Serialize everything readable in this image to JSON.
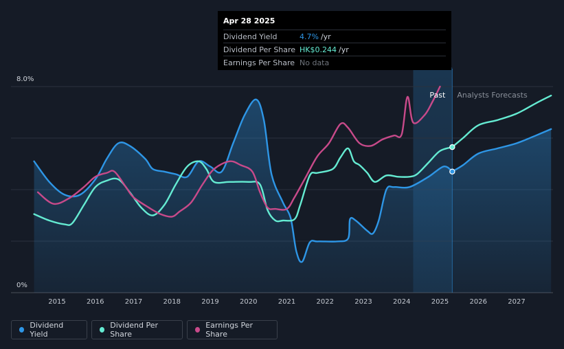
{
  "tooltip": {
    "date": "Apr 28 2025",
    "rows": [
      {
        "label": "Dividend Yield",
        "value": "4.7%",
        "unit": "/yr",
        "color": "#2e96e6"
      },
      {
        "label": "Dividend Per Share",
        "value": "HK$0.244",
        "unit": "/yr",
        "color": "#65ebd2"
      },
      {
        "label": "Earnings Per Share",
        "value": "No data",
        "unit": "",
        "color": "#6f747c"
      }
    ]
  },
  "legend": {
    "yield": "Dividend Yield",
    "dps": "Dividend Per Share",
    "eps": "Earnings Per Share"
  },
  "chart_data": {
    "type": "line",
    "x_ticks": [
      "2015",
      "2016",
      "2017",
      "2018",
      "2019",
      "2020",
      "2021",
      "2022",
      "2023",
      "2024",
      "2025",
      "2026",
      "2027"
    ],
    "y_ticks": [
      "0%",
      "8.0%"
    ],
    "xlim": [
      2014.3,
      2027.9
    ],
    "ylim": [
      0,
      8
    ],
    "past_label": "Past",
    "forecast_label": "Analysts Forecasts",
    "past_end_x": 2025.32,
    "past_band_start_x": 2024.3,
    "colors": {
      "yield": "#2e96e6",
      "dps": "#65ebd2",
      "eps": "#c84a8a"
    },
    "series": [
      {
        "name": "Dividend Yield",
        "key": "yield",
        "filled": true,
        "points": [
          [
            2014.4,
            5.1
          ],
          [
            2014.8,
            4.3
          ],
          [
            2015.2,
            3.8
          ],
          [
            2015.6,
            3.8
          ],
          [
            2016.0,
            4.4
          ],
          [
            2016.3,
            5.2
          ],
          [
            2016.6,
            5.8
          ],
          [
            2016.9,
            5.7
          ],
          [
            2017.3,
            5.2
          ],
          [
            2017.5,
            4.8
          ],
          [
            2017.8,
            4.7
          ],
          [
            2018.1,
            4.6
          ],
          [
            2018.4,
            4.5
          ],
          [
            2018.7,
            5.1
          ],
          [
            2019.0,
            4.9
          ],
          [
            2019.3,
            4.7
          ],
          [
            2019.6,
            5.8
          ],
          [
            2019.9,
            6.9
          ],
          [
            2020.2,
            7.5
          ],
          [
            2020.4,
            6.7
          ],
          [
            2020.6,
            4.6
          ],
          [
            2020.9,
            3.5
          ],
          [
            2021.1,
            2.9
          ],
          [
            2021.25,
            1.6
          ],
          [
            2021.4,
            1.2
          ],
          [
            2021.6,
            1.95
          ],
          [
            2021.8,
            1.99
          ],
          [
            2022.3,
            1.99
          ],
          [
            2022.6,
            2.1
          ],
          [
            2022.65,
            2.85
          ],
          [
            2022.8,
            2.8
          ],
          [
            2023.1,
            2.4
          ],
          [
            2023.25,
            2.3
          ],
          [
            2023.4,
            2.8
          ],
          [
            2023.6,
            4.0
          ],
          [
            2023.8,
            4.1
          ],
          [
            2024.2,
            4.1
          ],
          [
            2024.7,
            4.5
          ],
          [
            2025.1,
            4.9
          ],
          [
            2025.32,
            4.7
          ]
        ]
      },
      {
        "name": "Dividend Yield forecast",
        "key": "yield",
        "filled": true,
        "forecast": true,
        "points": [
          [
            2025.32,
            4.7
          ],
          [
            2025.6,
            4.95
          ],
          [
            2026.0,
            5.4
          ],
          [
            2026.5,
            5.6
          ],
          [
            2027.0,
            5.8
          ],
          [
            2027.5,
            6.1
          ],
          [
            2027.9,
            6.35
          ]
        ]
      },
      {
        "name": "Dividend Per Share",
        "key": "dps",
        "points": [
          [
            2014.4,
            3.05
          ],
          [
            2014.8,
            2.8
          ],
          [
            2015.2,
            2.65
          ],
          [
            2015.4,
            2.7
          ],
          [
            2015.7,
            3.4
          ],
          [
            2016.0,
            4.1
          ],
          [
            2016.3,
            4.35
          ],
          [
            2016.6,
            4.4
          ],
          [
            2016.9,
            3.9
          ],
          [
            2017.2,
            3.3
          ],
          [
            2017.5,
            3.0
          ],
          [
            2017.8,
            3.4
          ],
          [
            2018.1,
            4.2
          ],
          [
            2018.4,
            4.9
          ],
          [
            2018.7,
            5.1
          ],
          [
            2018.9,
            4.8
          ],
          [
            2019.1,
            4.3
          ],
          [
            2019.5,
            4.3
          ],
          [
            2020.0,
            4.3
          ],
          [
            2020.3,
            4.2
          ],
          [
            2020.5,
            3.2
          ],
          [
            2020.7,
            2.8
          ],
          [
            2020.9,
            2.8
          ],
          [
            2021.2,
            2.85
          ],
          [
            2021.35,
            3.4
          ],
          [
            2021.6,
            4.55
          ],
          [
            2021.8,
            4.65
          ],
          [
            2022.2,
            4.8
          ],
          [
            2022.4,
            5.25
          ],
          [
            2022.6,
            5.6
          ],
          [
            2022.75,
            5.1
          ],
          [
            2022.9,
            4.95
          ],
          [
            2023.1,
            4.65
          ],
          [
            2023.3,
            4.3
          ],
          [
            2023.6,
            4.55
          ],
          [
            2023.9,
            4.5
          ],
          [
            2024.2,
            4.5
          ],
          [
            2024.4,
            4.6
          ],
          [
            2024.7,
            5.05
          ],
          [
            2025.0,
            5.5
          ],
          [
            2025.32,
            5.65
          ]
        ]
      },
      {
        "name": "Dividend Per Share forecast",
        "key": "dps",
        "forecast": true,
        "points": [
          [
            2025.32,
            5.65
          ],
          [
            2025.6,
            6.0
          ],
          [
            2026.0,
            6.5
          ],
          [
            2026.5,
            6.7
          ],
          [
            2027.0,
            6.95
          ],
          [
            2027.5,
            7.35
          ],
          [
            2027.9,
            7.65
          ]
        ]
      },
      {
        "name": "Earnings Per Share",
        "key": "eps",
        "points": [
          [
            2014.5,
            3.9
          ],
          [
            2014.9,
            3.45
          ],
          [
            2015.3,
            3.65
          ],
          [
            2015.7,
            4.1
          ],
          [
            2016.0,
            4.5
          ],
          [
            2016.3,
            4.65
          ],
          [
            2016.5,
            4.7
          ],
          [
            2016.8,
            4.1
          ],
          [
            2017.0,
            3.7
          ],
          [
            2017.4,
            3.3
          ],
          [
            2017.7,
            3.05
          ],
          [
            2018.0,
            2.95
          ],
          [
            2018.2,
            3.15
          ],
          [
            2018.5,
            3.5
          ],
          [
            2018.8,
            4.2
          ],
          [
            2019.1,
            4.8
          ],
          [
            2019.5,
            5.1
          ],
          [
            2019.8,
            4.95
          ],
          [
            2020.1,
            4.7
          ],
          [
            2020.3,
            3.9
          ],
          [
            2020.5,
            3.3
          ],
          [
            2020.7,
            3.25
          ],
          [
            2021.0,
            3.25
          ],
          [
            2021.2,
            3.7
          ],
          [
            2021.5,
            4.5
          ],
          [
            2021.8,
            5.3
          ],
          [
            2022.1,
            5.8
          ],
          [
            2022.4,
            6.55
          ],
          [
            2022.6,
            6.4
          ],
          [
            2022.9,
            5.8
          ],
          [
            2023.2,
            5.7
          ],
          [
            2023.5,
            5.95
          ],
          [
            2023.8,
            6.1
          ],
          [
            2024.0,
            6.15
          ],
          [
            2024.15,
            7.6
          ],
          [
            2024.3,
            6.6
          ],
          [
            2024.6,
            6.9
          ],
          [
            2024.8,
            7.4
          ],
          [
            2025.0,
            8.0
          ]
        ]
      }
    ]
  }
}
